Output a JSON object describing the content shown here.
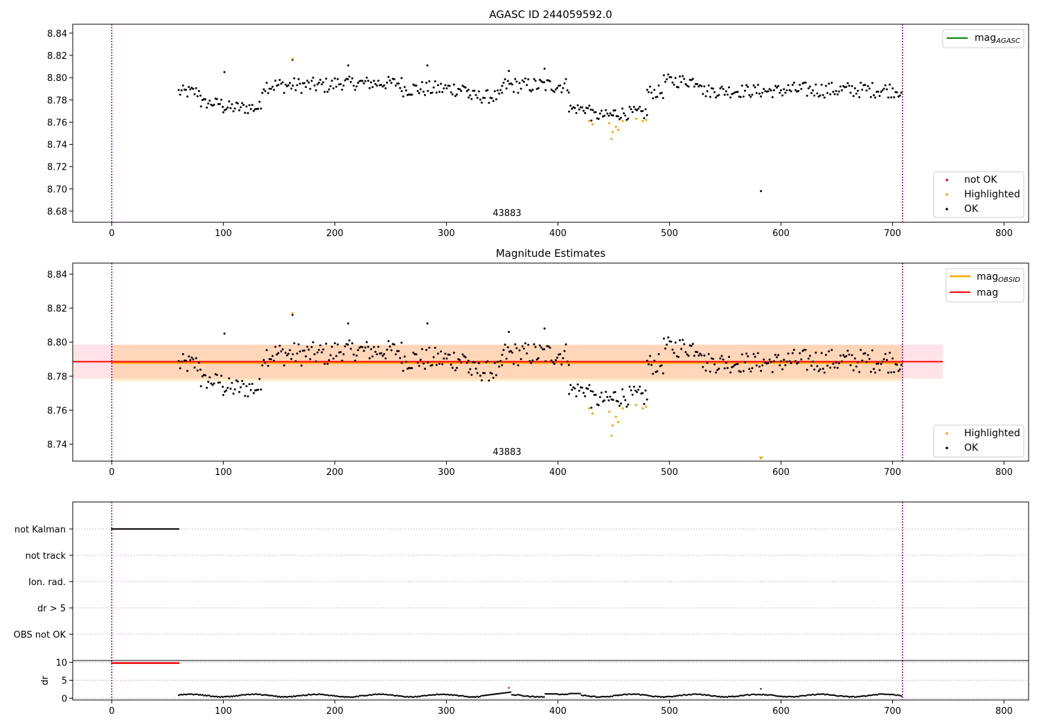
{
  "chart_data": [
    {
      "type": "scatter",
      "title": "AGASC ID 244059592.0",
      "xlim": [
        -35,
        822
      ],
      "ylim": [
        8.67,
        8.848
      ],
      "x_ticks": [
        0,
        100,
        200,
        300,
        400,
        500,
        600,
        700,
        800
      ],
      "y_ticks": [
        8.68,
        8.7,
        8.72,
        8.74,
        8.76,
        8.78,
        8.8,
        8.82,
        8.84
      ],
      "grid": false,
      "vlines": [
        0,
        709
      ],
      "annotation": {
        "text": "43883",
        "x": 354,
        "y": 8.675
      },
      "legend_lines": {
        "placement": "top-right",
        "entries": [
          {
            "label": "mag",
            "sub": "AGASC",
            "color": "#008000"
          }
        ]
      },
      "legend_points": {
        "placement": "bottom-right",
        "entries": [
          {
            "label": "not OK",
            "color": "#ff0000"
          },
          {
            "label": "Highlighted",
            "color": "#ffa500"
          },
          {
            "label": "OK",
            "color": "#000000"
          }
        ]
      },
      "series": [
        {
          "name": "OK",
          "color": "#000000",
          "segments": [
            {
              "x0": 60,
              "x1": 80,
              "base": 8.787,
              "amp": 0.006
            },
            {
              "x0": 80,
              "x1": 100,
              "base": 8.777,
              "amp": 0.005
            },
            {
              "x0": 100,
              "x1": 135,
              "base": 8.773,
              "amp": 0.006
            },
            {
              "x0": 135,
              "x1": 200,
              "base": 8.793,
              "amp": 0.007
            },
            {
              "x0": 200,
              "x1": 260,
              "base": 8.795,
              "amp": 0.006
            },
            {
              "x0": 260,
              "x1": 320,
              "base": 8.79,
              "amp": 0.007
            },
            {
              "x0": 320,
              "x1": 350,
              "base": 8.783,
              "amp": 0.006
            },
            {
              "x0": 350,
              "x1": 410,
              "base": 8.793,
              "amp": 0.007
            },
            {
              "x0": 410,
              "x1": 430,
              "base": 8.772,
              "amp": 0.005
            },
            {
              "x0": 430,
              "x1": 450,
              "base": 8.766,
              "amp": 0.005
            },
            {
              "x0": 450,
              "x1": 480,
              "base": 8.768,
              "amp": 0.006
            },
            {
              "x0": 480,
              "x1": 495,
              "base": 8.787,
              "amp": 0.006
            },
            {
              "x0": 495,
              "x1": 530,
              "base": 8.797,
              "amp": 0.006
            },
            {
              "x0": 530,
              "x1": 600,
              "base": 8.788,
              "amp": 0.006
            },
            {
              "x0": 600,
              "x1": 709,
              "base": 8.789,
              "amp": 0.007
            }
          ],
          "extra": [
            [
              101,
              8.805
            ],
            [
              162,
              8.816
            ],
            [
              212,
              8.811
            ],
            [
              283,
              8.811
            ],
            [
              356,
              8.806
            ],
            [
              388,
              8.808
            ]
          ]
        },
        {
          "name": "Highlighted",
          "color": "#ffa500",
          "points": [
            [
              162,
              8.817
            ],
            [
              428,
              8.761
            ],
            [
              431,
              8.758
            ],
            [
              446,
              8.759
            ],
            [
              448,
              8.745
            ],
            [
              449,
              8.751
            ],
            [
              452,
              8.756
            ],
            [
              454,
              8.753
            ],
            [
              458,
              8.761
            ],
            [
              470,
              8.763
            ],
            [
              476,
              8.761
            ],
            [
              479,
              8.762
            ]
          ]
        },
        {
          "name": "not OK",
          "color": "#ff0000",
          "points": []
        },
        {
          "name": "outlier",
          "color": "#000000",
          "points": [
            [
              582,
              8.698
            ]
          ]
        }
      ]
    },
    {
      "type": "scatter",
      "title": "Magnitude Estimates",
      "xlim": [
        -35,
        822
      ],
      "ylim": [
        8.73,
        8.8465
      ],
      "x_ticks": [
        0,
        100,
        200,
        300,
        400,
        500,
        600,
        700,
        800
      ],
      "y_ticks": [
        8.74,
        8.76,
        8.78,
        8.8,
        8.82,
        8.84
      ],
      "grid": false,
      "vlines": [
        0,
        709
      ],
      "annotation": {
        "text": "43883",
        "x": 354,
        "y": 8.7335
      },
      "bands": [
        {
          "x0": -35,
          "x1": 745,
          "y0": 8.7785,
          "y1": 8.7985,
          "color": "#ffc0cb",
          "opacity": 0.45
        },
        {
          "x0": 0,
          "x1": 709,
          "y0": 8.777,
          "y1": 8.7985,
          "color": "#ffa500",
          "opacity": 0.2
        }
      ],
      "lines": [
        {
          "name": "mag",
          "sub": "OBSID",
          "color": "#ffa500",
          "x0": 0,
          "x1": 709,
          "y": 8.7878,
          "width": 2.5
        },
        {
          "name": "mag",
          "color": "#ff0000",
          "x0": -35,
          "x1": 745,
          "y": 8.7885,
          "width": 2
        }
      ],
      "legend_lines": {
        "placement": "top-right",
        "entries": [
          {
            "label": "mag",
            "sub": "OBSID",
            "color": "#ffa500"
          },
          {
            "label": "mag",
            "color": "#ff0000"
          }
        ]
      },
      "legend_points": {
        "placement": "bottom-right",
        "entries": [
          {
            "label": "Highlighted",
            "color": "#ffa500"
          },
          {
            "label": "OK",
            "color": "#000000"
          }
        ]
      },
      "series_ref": "same as chart 0 OK and Highlighted",
      "offscreen_marker": {
        "x": 582,
        "y": 8.7315,
        "color": "#ffa500"
      }
    },
    {
      "type": "scatter",
      "title": "",
      "xlim": [
        -35,
        822
      ],
      "categories": [
        "not Kalman",
        "not track",
        "Ion. rad.",
        "dr > 5",
        "OBS not OK"
      ],
      "flags": [
        {
          "category": "not Kalman",
          "x0": 0,
          "x1": 60,
          "color": "#000000"
        }
      ],
      "grid": true,
      "vlines": [
        0,
        709
      ]
    },
    {
      "type": "scatter",
      "title": "",
      "ylabel": "dr",
      "xlim": [
        -35,
        822
      ],
      "ylim": [
        -0.5,
        10.5
      ],
      "x_ticks": [
        0,
        100,
        200,
        300,
        400,
        500,
        600,
        700,
        800
      ],
      "y_ticks": [
        0,
        5,
        10
      ],
      "grid": true,
      "vlines": [
        0,
        709
      ],
      "series": [
        {
          "name": "not OK",
          "color": "#ff0000",
          "points_const": {
            "x0": 0,
            "x1": 60,
            "y": 9.8
          },
          "extra": [
            [
              356,
              2.9
            ]
          ]
        },
        {
          "name": "OK",
          "color": "#000000",
          "range": {
            "x0": 60,
            "x1": 709
          },
          "extra": [
            [
              582,
              2.6
            ]
          ]
        }
      ]
    }
  ]
}
